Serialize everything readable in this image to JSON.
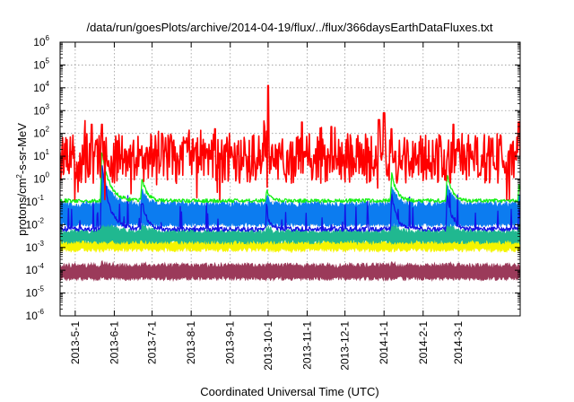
{
  "chart_data": {
    "type": "line",
    "title": "/data/run/goesPlots/archive/2014-04-19/flux/../flux/366daysEarthDataFluxes.txt",
    "xlabel": "Coordinated Universal Time (UTC)",
    "ylabel": "protons/cm2-s-sr-MeV",
    "ylabel_parts": {
      "pre": "protons/cm",
      "sup": "2",
      "post": "-s-sr-MeV"
    },
    "yscale": "log",
    "ylim_exp": [
      -6,
      6
    ],
    "y_ticks": [
      {
        "base": "10",
        "exp": "-6"
      },
      {
        "base": "10",
        "exp": "-5"
      },
      {
        "base": "10",
        "exp": "-4"
      },
      {
        "base": "10",
        "exp": "-3"
      },
      {
        "base": "10",
        "exp": "-2"
      },
      {
        "base": "10",
        "exp": "-1"
      },
      {
        "base": "10",
        "exp": "0"
      },
      {
        "base": "10",
        "exp": "1"
      },
      {
        "base": "10",
        "exp": "2"
      },
      {
        "base": "10",
        "exp": "3"
      },
      {
        "base": "10",
        "exp": "4"
      },
      {
        "base": "10",
        "exp": "5"
      },
      {
        "base": "10",
        "exp": "6"
      }
    ],
    "xlim": [
      "2013-04-19",
      "2014-04-19"
    ],
    "x_ticks": [
      {
        "label": "2013-5-1",
        "date": "2013-05-01"
      },
      {
        "label": "2013-6-1",
        "date": "2013-06-01"
      },
      {
        "label": "2013-7-1",
        "date": "2013-07-01"
      },
      {
        "label": "2013-8-1",
        "date": "2013-08-01"
      },
      {
        "label": "2013-9-1",
        "date": "2013-09-01"
      },
      {
        "label": "2013-10-1",
        "date": "2013-10-01"
      },
      {
        "label": "2013-11-1",
        "date": "2013-11-01"
      },
      {
        "label": "2013-12-1",
        "date": "2013-12-01"
      },
      {
        "label": "2014-1-1",
        "date": "2014-01-01"
      },
      {
        "label": "2014-2-1",
        "date": "2014-02-01"
      },
      {
        "label": "2014-3-1",
        "date": "2014-03-01"
      }
    ],
    "grid": true,
    "legend": "none",
    "events": [
      {
        "date": "2013-05-22",
        "peak_log": 2.8,
        "width_days": 6
      },
      {
        "date": "2013-06-23",
        "peak_log": 1.2,
        "width_days": 4
      },
      {
        "date": "2013-09-30",
        "peak_log": 0.6,
        "width_days": 3
      },
      {
        "date": "2014-01-07",
        "peak_log": 1.5,
        "width_days": 4
      },
      {
        "date": "2014-02-20",
        "peak_log": 1.5,
        "width_days": 4
      },
      {
        "date": "2014-04-18",
        "peak_log": 0.8,
        "width_days": 2
      }
    ],
    "red_spikes": [
      {
        "date": "2013-05-14",
        "log": 2.4
      },
      {
        "date": "2013-05-22",
        "log": 2.4
      },
      {
        "date": "2013-06-21",
        "log": 1.3
      },
      {
        "date": "2013-07-09",
        "log": 2.0
      },
      {
        "date": "2013-08-20",
        "log": 2.2
      },
      {
        "date": "2013-09-28",
        "log": 2.3
      },
      {
        "date": "2013-10-01",
        "log": 4.1
      },
      {
        "date": "2013-10-28",
        "log": 2.5
      },
      {
        "date": "2013-11-20",
        "log": 2.3
      },
      {
        "date": "2013-12-28",
        "log": 2.6
      },
      {
        "date": "2014-01-01",
        "log": 2.9
      },
      {
        "date": "2014-01-07",
        "log": 2.2
      },
      {
        "date": "2014-02-25",
        "log": 2.4
      },
      {
        "date": "2014-04-18",
        "log": 2.5
      }
    ],
    "series": [
      {
        "color": "#9b3a5a",
        "base_log": -3.8,
        "floor_log": -4.35,
        "noise": 0.12,
        "event_scale": 0.05,
        "style": "band"
      },
      {
        "color": "#f5f500",
        "base_log": -2.75,
        "floor_log": -3.1,
        "noise": 0.1,
        "event_scale": 0.15,
        "style": "band"
      },
      {
        "color": "#20b890",
        "base_log": -2.3,
        "floor_log": -2.75,
        "noise": 0.12,
        "event_scale": 0.3,
        "style": "band"
      },
      {
        "color": "#0c7cf0",
        "base_log": -1.1,
        "floor_log": -2.0,
        "noise": 0.15,
        "event_scale": 0.55,
        "style": "band"
      },
      {
        "color": "#1414e6",
        "base_log": -2.2,
        "floor_log": -2.3,
        "noise": 0.1,
        "event_scale": 0.65,
        "style": "line"
      },
      {
        "color": "#14f014",
        "base_log": -0.95,
        "floor_log": -1.2,
        "noise": 0.08,
        "event_scale": 0.8,
        "style": "line"
      },
      {
        "color": "#ff0000",
        "base_log": 0.9,
        "floor_log": -1.0,
        "noise": 0.55,
        "event_scale": 0.4,
        "style": "line"
      }
    ]
  }
}
